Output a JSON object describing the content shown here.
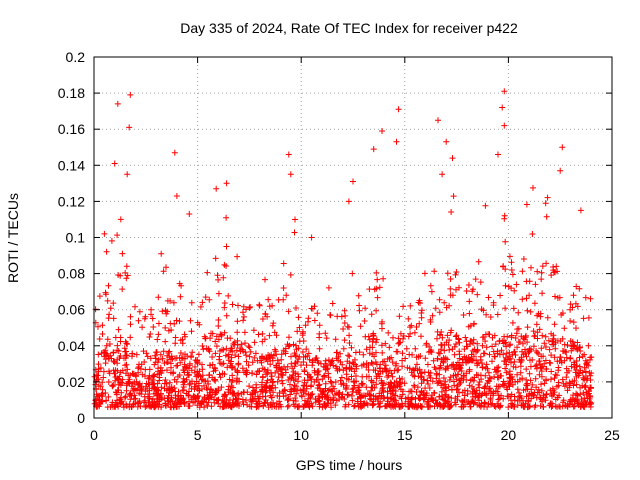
{
  "chart_data": {
    "type": "scatter",
    "title": "Day 335 of 2024, Rate Of TEC Index for receiver p422",
    "xlabel": "GPS time / hours",
    "ylabel": "ROTI / TECUs",
    "xlim": [
      0,
      25
    ],
    "ylim": [
      0,
      0.2
    ],
    "grid": true,
    "marker": "+",
    "x_ticks": [
      0,
      5,
      10,
      15,
      20,
      25
    ],
    "x_tick_labels": [
      "0",
      "5",
      "10",
      "15",
      "20",
      "25"
    ],
    "y_ticks": [
      0,
      0.02,
      0.04,
      0.06,
      0.08,
      0.1,
      0.12,
      0.14,
      0.16,
      0.18,
      0.2
    ],
    "y_tick_labels": [
      "0",
      "0.02",
      "0.04",
      "0.06",
      "0.08",
      "0.1",
      "0.12",
      "0.14",
      "0.16",
      "0.18",
      "0.2"
    ],
    "series": [
      {
        "name": "ROTI",
        "color": "#ff0000",
        "summary": "Dense cloud of ROTI samples from 0 to 24 h, mostly between 0.005 and 0.05 TECU/min, with scattered spikes up to about 0.18",
        "peaks": [
          {
            "x": 0.5,
            "y": 0.102
          },
          {
            "x": 1.15,
            "y": 0.174
          },
          {
            "x": 1.75,
            "y": 0.179
          },
          {
            "x": 1.7,
            "y": 0.161
          },
          {
            "x": 1.6,
            "y": 0.135
          },
          {
            "x": 1.0,
            "y": 0.141
          },
          {
            "x": 3.9,
            "y": 0.147
          },
          {
            "x": 4.0,
            "y": 0.123
          },
          {
            "x": 4.6,
            "y": 0.113
          },
          {
            "x": 5.9,
            "y": 0.127
          },
          {
            "x": 6.4,
            "y": 0.13
          },
          {
            "x": 9.4,
            "y": 0.146
          },
          {
            "x": 9.5,
            "y": 0.135
          },
          {
            "x": 9.7,
            "y": 0.11
          },
          {
            "x": 10.5,
            "y": 0.1
          },
          {
            "x": 12.5,
            "y": 0.131
          },
          {
            "x": 12.3,
            "y": 0.12
          },
          {
            "x": 13.5,
            "y": 0.149
          },
          {
            "x": 13.9,
            "y": 0.159
          },
          {
            "x": 14.7,
            "y": 0.171
          },
          {
            "x": 14.6,
            "y": 0.153
          },
          {
            "x": 16.6,
            "y": 0.165
          },
          {
            "x": 17.0,
            "y": 0.153
          },
          {
            "x": 17.3,
            "y": 0.144
          },
          {
            "x": 16.8,
            "y": 0.135
          },
          {
            "x": 19.8,
            "y": 0.181
          },
          {
            "x": 19.7,
            "y": 0.172
          },
          {
            "x": 19.8,
            "y": 0.162
          },
          {
            "x": 19.5,
            "y": 0.146
          },
          {
            "x": 22.6,
            "y": 0.15
          },
          {
            "x": 22.5,
            "y": 0.137
          },
          {
            "x": 21.8,
            "y": 0.119
          },
          {
            "x": 23.5,
            "y": 0.115
          }
        ],
        "activity_envelope": {
          "x": [
            0,
            0.5,
            1.0,
            1.5,
            2.0,
            2.5,
            3.0,
            3.5,
            4.0,
            4.5,
            5.0,
            5.5,
            6.0,
            6.5,
            7.0,
            7.5,
            8.0,
            8.5,
            9.0,
            9.5,
            10.0,
            10.5,
            11.0,
            11.5,
            12.0,
            12.5,
            13.0,
            13.5,
            14.0,
            14.5,
            15.0,
            15.5,
            16.0,
            16.5,
            17.0,
            17.5,
            18.0,
            18.5,
            19.0,
            19.5,
            20.0,
            20.5,
            21.0,
            21.5,
            22.0,
            22.5,
            23.0,
            23.5,
            24.0
          ],
          "typical": [
            0.025,
            0.045,
            0.05,
            0.055,
            0.04,
            0.035,
            0.04,
            0.045,
            0.04,
            0.04,
            0.04,
            0.055,
            0.06,
            0.055,
            0.045,
            0.04,
            0.04,
            0.04,
            0.045,
            0.06,
            0.045,
            0.04,
            0.035,
            0.035,
            0.04,
            0.04,
            0.045,
            0.055,
            0.045,
            0.045,
            0.04,
            0.04,
            0.045,
            0.055,
            0.06,
            0.055,
            0.05,
            0.05,
            0.055,
            0.06,
            0.055,
            0.055,
            0.06,
            0.06,
            0.055,
            0.055,
            0.05,
            0.045,
            0.03
          ]
        }
      }
    ]
  }
}
